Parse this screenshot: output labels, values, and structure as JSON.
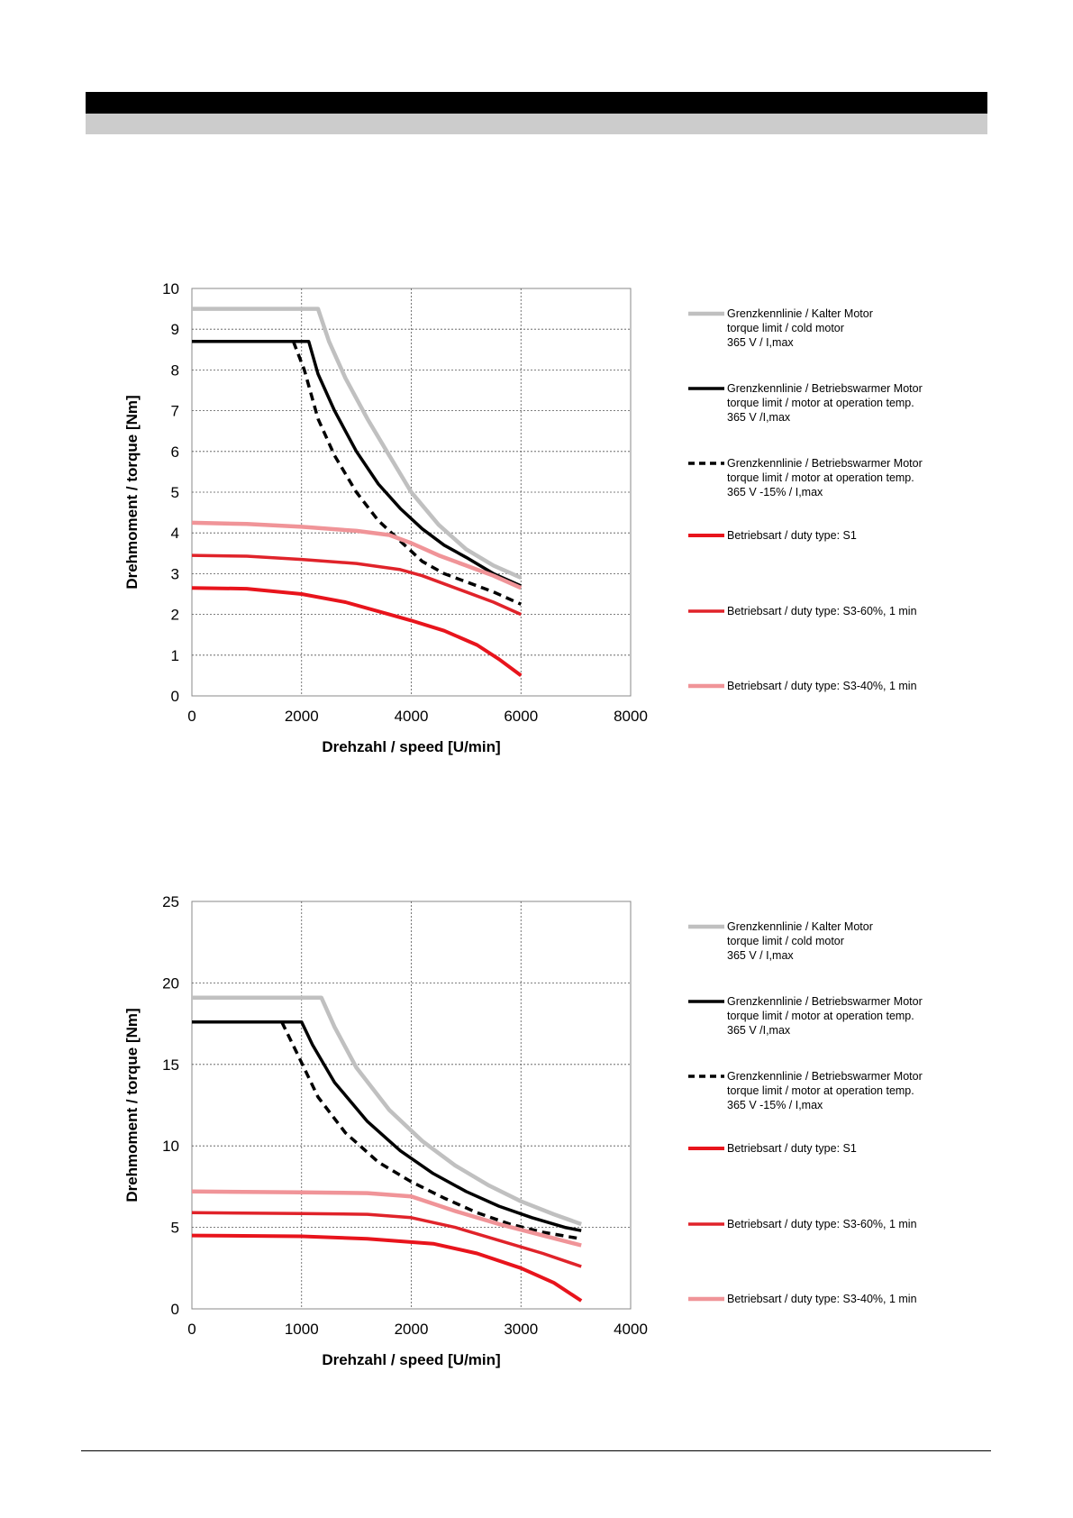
{
  "colors": {
    "cold": "#c0c0c0",
    "warm": "#000000",
    "s1": "#e8141c",
    "s3_60": "#e0232a",
    "s3_40": "#f09498"
  },
  "chart_data": [
    {
      "type": "line",
      "title": "",
      "xlabel": "Drehzahl / speed [U/min]",
      "ylabel": "Drehmoment / torque [Nm]",
      "xlim": [
        0,
        8000
      ],
      "ylim": [
        0,
        10
      ],
      "xticks": [
        "0",
        "2000",
        "4000",
        "6000",
        "8000"
      ],
      "yticks": [
        "0",
        "1",
        "2",
        "3",
        "4",
        "5",
        "6",
        "7",
        "8",
        "9",
        "10"
      ],
      "grid": true,
      "legend_position": "right",
      "series": [
        {
          "name": "Grenzkennlinie / Kalter Motor",
          "legend_lines": [
            "Grenzkennlinie / Kalter Motor",
            "torque limit / cold  motor",
            "365 V / I,max"
          ],
          "style": "cold",
          "points": [
            [
              0,
              9.5
            ],
            [
              2300,
              9.5
            ],
            [
              2500,
              8.7
            ],
            [
              2800,
              7.8
            ],
            [
              3200,
              6.8
            ],
            [
              3600,
              5.9
            ],
            [
              4000,
              5.0
            ],
            [
              4500,
              4.2
            ],
            [
              5000,
              3.6
            ],
            [
              5500,
              3.2
            ],
            [
              6000,
              2.9
            ]
          ]
        },
        {
          "name": "Grenzkennlinie / Betriebswarmer Motor",
          "legend_lines": [
            "Grenzkennlinie / Betriebswarmer Motor",
            "torque limit / motor at operation temp.",
            "365 V /I,max"
          ],
          "style": "warm",
          "points": [
            [
              0,
              8.7
            ],
            [
              2130,
              8.7
            ],
            [
              2300,
              7.9
            ],
            [
              2600,
              7.0
            ],
            [
              3000,
              6.0
            ],
            [
              3400,
              5.2
            ],
            [
              3800,
              4.6
            ],
            [
              4200,
              4.1
            ],
            [
              4600,
              3.7
            ],
            [
              5000,
              3.4
            ],
            [
              5500,
              3.0
            ],
            [
              6000,
              2.7
            ]
          ]
        },
        {
          "name": "Grenzkennlinie / Betriebswarmer Motor",
          "legend_lines": [
            "Grenzkennlinie / Betriebswarmer Motor",
            "torque limit / motor at operation temp.",
            "365 V  -15% / I,max"
          ],
          "style": "warm_dashed",
          "points": [
            [
              1850,
              8.7
            ],
            [
              2050,
              8.0
            ],
            [
              2300,
              6.8
            ],
            [
              2600,
              5.9
            ],
            [
              3000,
              5.0
            ],
            [
              3400,
              4.3
            ],
            [
              3800,
              3.8
            ],
            [
              4200,
              3.3
            ],
            [
              4600,
              3.0
            ],
            [
              5000,
              2.8
            ],
            [
              5500,
              2.55
            ],
            [
              6000,
              2.25
            ]
          ]
        },
        {
          "name": "Betriebsart / duty type: S1",
          "legend_lines": [
            "Betriebsart / duty type: S1"
          ],
          "style": "s1",
          "points": [
            [
              0,
              2.65
            ],
            [
              1000,
              2.63
            ],
            [
              2000,
              2.5
            ],
            [
              2800,
              2.3
            ],
            [
              3600,
              2.0
            ],
            [
              4000,
              1.85
            ],
            [
              4600,
              1.6
            ],
            [
              5200,
              1.25
            ],
            [
              5600,
              0.9
            ],
            [
              6000,
              0.5
            ]
          ]
        },
        {
          "name": "Betriebsart / duty type: S3-60%, 1 min",
          "legend_lines": [
            "Betriebsart / duty type: S3-60%, 1 min"
          ],
          "style": "s3_60",
          "points": [
            [
              0,
              3.45
            ],
            [
              1000,
              3.43
            ],
            [
              2000,
              3.35
            ],
            [
              3000,
              3.25
            ],
            [
              3800,
              3.1
            ],
            [
              4200,
              2.95
            ],
            [
              4600,
              2.75
            ],
            [
              5000,
              2.55
            ],
            [
              5500,
              2.3
            ],
            [
              6000,
              2.0
            ]
          ]
        },
        {
          "name": "Betriebsart / duty type: S3-40%, 1 min",
          "legend_lines": [
            "Betriebsart / duty type: S3-40%, 1 min"
          ],
          "style": "s3_40",
          "points": [
            [
              0,
              4.25
            ],
            [
              1000,
              4.22
            ],
            [
              2000,
              4.15
            ],
            [
              3000,
              4.05
            ],
            [
              3600,
              3.95
            ],
            [
              4000,
              3.75
            ],
            [
              4500,
              3.45
            ],
            [
              5000,
              3.2
            ],
            [
              5500,
              2.95
            ],
            [
              6000,
              2.65
            ]
          ]
        }
      ]
    },
    {
      "type": "line",
      "title": "",
      "xlabel": "Drehzahl / speed [U/min]",
      "ylabel": "Drehmoment / torque [Nm]",
      "xlim": [
        0,
        4000
      ],
      "ylim": [
        0,
        25
      ],
      "xticks": [
        "0",
        "1000",
        "2000",
        "3000",
        "4000"
      ],
      "yticks": [
        "0",
        "5",
        "10",
        "15",
        "20",
        "25"
      ],
      "grid": true,
      "legend_position": "right",
      "series": [
        {
          "name": "Grenzkennlinie / Kalter Motor",
          "legend_lines": [
            "Grenzkennlinie / Kalter Motor",
            "torque limit / cold  motor",
            "365 V / I,max"
          ],
          "style": "cold",
          "points": [
            [
              0,
              19.1
            ],
            [
              1180,
              19.1
            ],
            [
              1300,
              17.3
            ],
            [
              1500,
              14.8
            ],
            [
              1800,
              12.2
            ],
            [
              2100,
              10.3
            ],
            [
              2400,
              8.8
            ],
            [
              2700,
              7.6
            ],
            [
              3000,
              6.6
            ],
            [
              3300,
              5.8
            ],
            [
              3550,
              5.2
            ]
          ]
        },
        {
          "name": "Grenzkennlinie / Betriebswarmer Motor",
          "legend_lines": [
            "Grenzkennlinie / Betriebswarmer Motor",
            "torque limit / motor at operation temp.",
            "365 V /I,max"
          ],
          "style": "warm",
          "points": [
            [
              0,
              17.6
            ],
            [
              1000,
              17.6
            ],
            [
              1100,
              16.2
            ],
            [
              1300,
              13.9
            ],
            [
              1600,
              11.5
            ],
            [
              1900,
              9.7
            ],
            [
              2200,
              8.3
            ],
            [
              2500,
              7.2
            ],
            [
              2800,
              6.3
            ],
            [
              3100,
              5.6
            ],
            [
              3400,
              5.0
            ],
            [
              3550,
              4.8
            ]
          ]
        },
        {
          "name": "Grenzkennlinie / Betriebswarmer Motor",
          "legend_lines": [
            "Grenzkennlinie / Betriebswarmer Motor",
            "torque limit / motor at operation temp.",
            "365 V  -15% / I,max"
          ],
          "style": "warm_dashed",
          "points": [
            [
              820,
              17.6
            ],
            [
              950,
              15.8
            ],
            [
              1150,
              13.0
            ],
            [
              1400,
              10.8
            ],
            [
              1700,
              9.0
            ],
            [
              2000,
              7.8
            ],
            [
              2300,
              6.8
            ],
            [
              2600,
              5.9
            ],
            [
              2900,
              5.2
            ],
            [
              3200,
              4.7
            ],
            [
              3550,
              4.3
            ]
          ]
        },
        {
          "name": "Betriebsart / duty type: S1",
          "legend_lines": [
            "Betriebsart / duty type: S1"
          ],
          "style": "s1",
          "points": [
            [
              0,
              4.5
            ],
            [
              1000,
              4.45
            ],
            [
              1600,
              4.3
            ],
            [
              2200,
              4.0
            ],
            [
              2600,
              3.4
            ],
            [
              3000,
              2.5
            ],
            [
              3300,
              1.6
            ],
            [
              3550,
              0.5
            ]
          ]
        },
        {
          "name": "Betriebsart / duty type: S3-60%, 1 min",
          "legend_lines": [
            "Betriebsart / duty type: S3-60%, 1 min"
          ],
          "style": "s3_60",
          "points": [
            [
              0,
              5.9
            ],
            [
              1000,
              5.85
            ],
            [
              1600,
              5.8
            ],
            [
              2000,
              5.6
            ],
            [
              2400,
              5.0
            ],
            [
              2800,
              4.2
            ],
            [
              3200,
              3.4
            ],
            [
              3550,
              2.6
            ]
          ]
        },
        {
          "name": "Betriebsart / duty type: S3-40%, 1 min",
          "legend_lines": [
            "Betriebsart / duty type: S3-40%, 1 min"
          ],
          "style": "s3_40",
          "points": [
            [
              0,
              7.2
            ],
            [
              1000,
              7.15
            ],
            [
              1600,
              7.1
            ],
            [
              2000,
              6.9
            ],
            [
              2400,
              6.0
            ],
            [
              2800,
              5.2
            ],
            [
              3200,
              4.5
            ],
            [
              3550,
              3.9
            ]
          ]
        }
      ]
    }
  ]
}
